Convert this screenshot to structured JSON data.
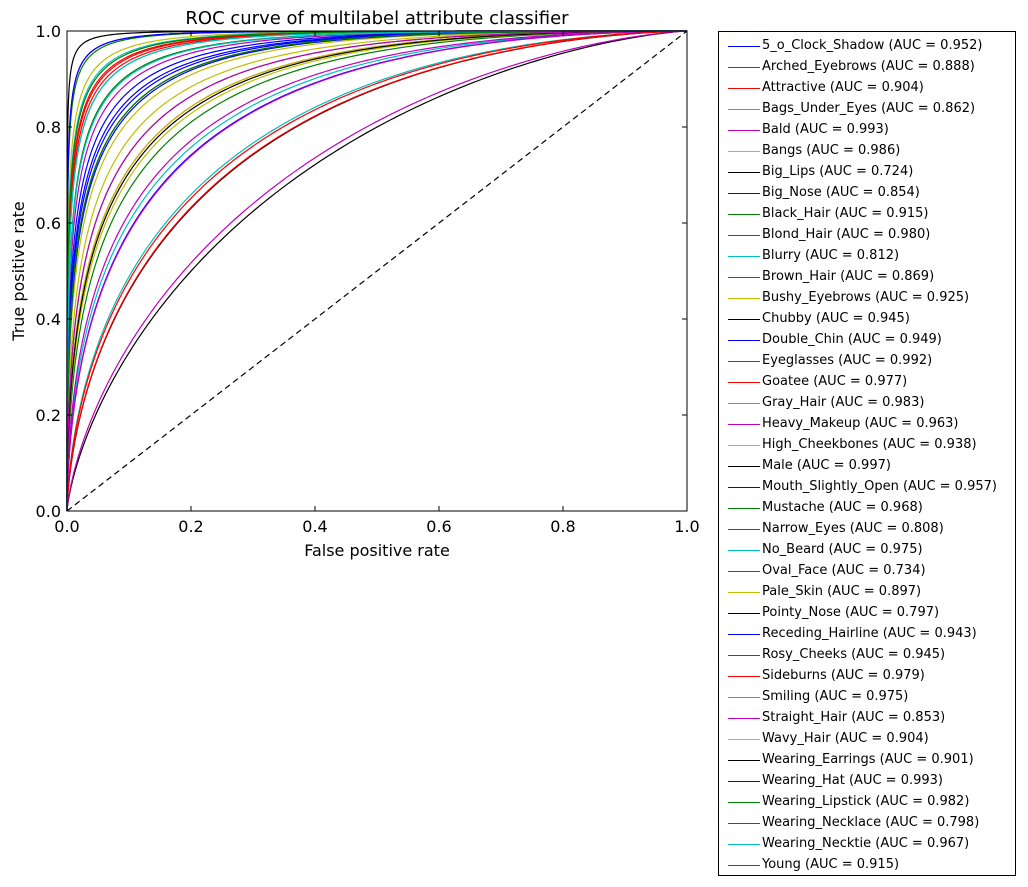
{
  "chart_data": {
    "type": "line",
    "title": "ROC curve of multilabel attribute classifier",
    "xlabel": "False positive rate",
    "ylabel": "True positive rate",
    "xlim": [
      0.0,
      1.0
    ],
    "ylim": [
      0.0,
      1.0
    ],
    "xticks": [
      "0.0",
      "0.2",
      "0.4",
      "0.6",
      "0.8",
      "1.0"
    ],
    "yticks": [
      "0.0",
      "0.2",
      "0.4",
      "0.6",
      "0.8",
      "1.0"
    ],
    "grid": false,
    "legend_position": "outside right",
    "diagonal": {
      "style": "dashed",
      "color": "#000000",
      "points": [
        [
          0,
          0
        ],
        [
          1,
          1
        ]
      ]
    },
    "series": [
      {
        "name": "5_o_Clock_Shadow",
        "label": "5_o_Clock_Shadow (AUC = 0.952)",
        "auc": 0.952,
        "color": "#0000ff"
      },
      {
        "name": "Arched_Eyebrows",
        "label": "Arched_Eyebrows (AUC = 0.888)",
        "auc": 0.888,
        "color": "#008000"
      },
      {
        "name": "Attractive",
        "label": "Attractive (AUC = 0.904)",
        "auc": 0.904,
        "color": "#ff0000"
      },
      {
        "name": "Bags_Under_Eyes",
        "label": "Bags_Under_Eyes (AUC = 0.862)",
        "auc": 0.862,
        "color": "#00bfbf"
      },
      {
        "name": "Bald",
        "label": "Bald (AUC = 0.993)",
        "auc": 0.993,
        "color": "#bf00bf"
      },
      {
        "name": "Bangs",
        "label": "Bangs (AUC = 0.986)",
        "auc": 0.986,
        "color": "#bfbf00"
      },
      {
        "name": "Big_Lips",
        "label": "Big_Lips (AUC = 0.724)",
        "auc": 0.724,
        "color": "#000000"
      },
      {
        "name": "Big_Nose",
        "label": "Big_Nose (AUC = 0.854)",
        "auc": 0.854,
        "color": "#0000ff"
      },
      {
        "name": "Black_Hair",
        "label": "Black_Hair (AUC = 0.915)",
        "auc": 0.915,
        "color": "#008000"
      },
      {
        "name": "Blond_Hair",
        "label": "Blond_Hair (AUC = 0.980)",
        "auc": 0.98,
        "color": "#ff0000"
      },
      {
        "name": "Blurry",
        "label": "Blurry (AUC = 0.812)",
        "auc": 0.812,
        "color": "#00bfbf"
      },
      {
        "name": "Brown_Hair",
        "label": "Brown_Hair (AUC = 0.869)",
        "auc": 0.869,
        "color": "#bf00bf"
      },
      {
        "name": "Bushy_Eyebrows",
        "label": "Bushy_Eyebrows (AUC = 0.925)",
        "auc": 0.925,
        "color": "#bfbf00"
      },
      {
        "name": "Chubby",
        "label": "Chubby (AUC = 0.945)",
        "auc": 0.945,
        "color": "#000000"
      },
      {
        "name": "Double_Chin",
        "label": "Double_Chin (AUC = 0.949)",
        "auc": 0.949,
        "color": "#0000ff"
      },
      {
        "name": "Eyeglasses",
        "label": "Eyeglasses (AUC = 0.992)",
        "auc": 0.992,
        "color": "#008000"
      },
      {
        "name": "Goatee",
        "label": "Goatee (AUC = 0.977)",
        "auc": 0.977,
        "color": "#ff0000"
      },
      {
        "name": "Gray_Hair",
        "label": "Gray_Hair (AUC = 0.983)",
        "auc": 0.983,
        "color": "#00bfbf"
      },
      {
        "name": "Heavy_Makeup",
        "label": "Heavy_Makeup (AUC = 0.963)",
        "auc": 0.963,
        "color": "#bf00bf"
      },
      {
        "name": "High_Cheekbones",
        "label": "High_Cheekbones (AUC = 0.938)",
        "auc": 0.938,
        "color": "#bfbf00"
      },
      {
        "name": "Male",
        "label": "Male (AUC = 0.997)",
        "auc": 0.997,
        "color": "#000000"
      },
      {
        "name": "Mouth_Slightly_Open",
        "label": "Mouth_Slightly_Open (AUC = 0.957)",
        "auc": 0.957,
        "color": "#0000ff"
      },
      {
        "name": "Mustache",
        "label": "Mustache (AUC = 0.968)",
        "auc": 0.968,
        "color": "#008000"
      },
      {
        "name": "Narrow_Eyes",
        "label": "Narrow_Eyes (AUC = 0.808)",
        "auc": 0.808,
        "color": "#ff0000"
      },
      {
        "name": "No_Beard",
        "label": "No_Beard (AUC = 0.975)",
        "auc": 0.975,
        "color": "#00bfbf"
      },
      {
        "name": "Oval_Face",
        "label": "Oval_Face (AUC = 0.734)",
        "auc": 0.734,
        "color": "#bf00bf"
      },
      {
        "name": "Pale_Skin",
        "label": "Pale_Skin (AUC = 0.897)",
        "auc": 0.897,
        "color": "#bfbf00"
      },
      {
        "name": "Pointy_Nose",
        "label": "Pointy_Nose (AUC = 0.797)",
        "auc": 0.797,
        "color": "#000000"
      },
      {
        "name": "Receding_Hairline",
        "label": "Receding_Hairline (AUC = 0.943)",
        "auc": 0.943,
        "color": "#0000ff"
      },
      {
        "name": "Rosy_Cheeks",
        "label": "Rosy_Cheeks (AUC = 0.945)",
        "auc": 0.945,
        "color": "#008000"
      },
      {
        "name": "Sideburns",
        "label": "Sideburns (AUC = 0.979)",
        "auc": 0.979,
        "color": "#ff0000"
      },
      {
        "name": "Smiling",
        "label": "Smiling (AUC = 0.975)",
        "auc": 0.975,
        "color": "#00bfbf"
      },
      {
        "name": "Straight_Hair",
        "label": "Straight_Hair (AUC = 0.853)",
        "auc": 0.853,
        "color": "#bf00bf"
      },
      {
        "name": "Wavy_Hair",
        "label": "Wavy_Hair (AUC = 0.904)",
        "auc": 0.904,
        "color": "#bfbf00"
      },
      {
        "name": "Wearing_Earrings",
        "label": "Wearing_Earrings (AUC = 0.901)",
        "auc": 0.901,
        "color": "#000000"
      },
      {
        "name": "Wearing_Hat",
        "label": "Wearing_Hat (AUC = 0.993)",
        "auc": 0.993,
        "color": "#0000ff"
      },
      {
        "name": "Wearing_Lipstick",
        "label": "Wearing_Lipstick (AUC = 0.982)",
        "auc": 0.982,
        "color": "#008000"
      },
      {
        "name": "Wearing_Necklace",
        "label": "Wearing_Necklace (AUC = 0.798)",
        "auc": 0.798,
        "color": "#ff0000"
      },
      {
        "name": "Wearing_Necktie",
        "label": "Wearing_Necktie (AUC = 0.967)",
        "auc": 0.967,
        "color": "#00bfbf"
      },
      {
        "name": "Young",
        "label": "Young (AUC = 0.915)",
        "auc": 0.915,
        "color": "#bf00bf"
      }
    ]
  }
}
